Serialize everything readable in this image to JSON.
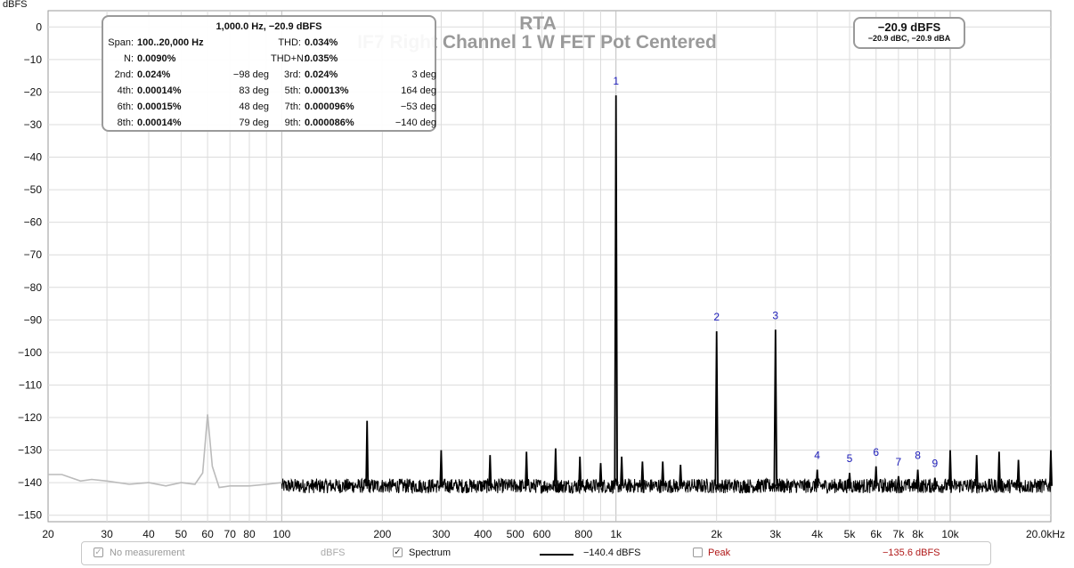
{
  "chart_data": {
    "type": "line",
    "title": "RTA",
    "subtitle": "IF7 Right Channel 1 W FET Pot Centered",
    "ylabel": "dBFS",
    "xscale": "log",
    "xlim": [
      20,
      20000
    ],
    "ylim": [
      -152,
      5
    ],
    "grid": true,
    "x_ticks": [
      {
        "v": 20,
        "label": "20"
      },
      {
        "v": 30,
        "label": "30"
      },
      {
        "v": 40,
        "label": "40"
      },
      {
        "v": 50,
        "label": "50"
      },
      {
        "v": 60,
        "label": "60"
      },
      {
        "v": 70,
        "label": "70"
      },
      {
        "v": 80,
        "label": "80"
      },
      {
        "v": 100,
        "label": "100"
      },
      {
        "v": 200,
        "label": "200"
      },
      {
        "v": 300,
        "label": "300"
      },
      {
        "v": 400,
        "label": "400"
      },
      {
        "v": 500,
        "label": "500"
      },
      {
        "v": 600,
        "label": "600"
      },
      {
        "v": 800,
        "label": "800"
      },
      {
        "v": 1000,
        "label": "1k"
      },
      {
        "v": 2000,
        "label": "2k"
      },
      {
        "v": 3000,
        "label": "3k"
      },
      {
        "v": 4000,
        "label": "4k"
      },
      {
        "v": 5000,
        "label": "5k"
      },
      {
        "v": 6000,
        "label": "6k"
      },
      {
        "v": 7000,
        "label": "7k"
      },
      {
        "v": 8000,
        "label": "8k"
      },
      {
        "v": 10000,
        "label": "10k"
      },
      {
        "v": 20000,
        "label": "20.0kHz"
      }
    ],
    "y_ticks": [
      0,
      -10,
      -20,
      -30,
      -40,
      -50,
      -60,
      -70,
      -80,
      -90,
      -100,
      -110,
      -120,
      -130,
      -140,
      -150
    ],
    "span_hz": [
      100,
      20000
    ],
    "noise_floor_dbfs": -141,
    "series": [
      {
        "name": "Spectrum",
        "color": "#000000",
        "range": [
          100,
          20000
        ],
        "peaks": [
          {
            "f": 180,
            "db": -121
          },
          {
            "f": 300,
            "db": -130
          },
          {
            "f": 420,
            "db": -131.5
          },
          {
            "f": 540,
            "db": -130.5
          },
          {
            "f": 660,
            "db": -129.5
          },
          {
            "f": 780,
            "db": -132
          },
          {
            "f": 900,
            "db": -134
          },
          {
            "f": 1000,
            "db": -21
          },
          {
            "f": 1040,
            "db": -132
          },
          {
            "f": 1200,
            "db": -133.5
          },
          {
            "f": 1380,
            "db": -133.5
          },
          {
            "f": 1560,
            "db": -134.5
          },
          {
            "f": 2000,
            "db": -93.5
          },
          {
            "f": 3000,
            "db": -93
          },
          {
            "f": 4000,
            "db": -136
          },
          {
            "f": 5000,
            "db": -137
          },
          {
            "f": 6000,
            "db": -135
          },
          {
            "f": 7000,
            "db": -138
          },
          {
            "f": 8000,
            "db": -136
          },
          {
            "f": 9000,
            "db": -138.5
          },
          {
            "f": 10000,
            "db": -130
          },
          {
            "f": 12000,
            "db": -131.5
          },
          {
            "f": 14000,
            "db": -130.5
          },
          {
            "f": 16000,
            "db": -133
          },
          {
            "f": 20000,
            "db": -130
          }
        ]
      },
      {
        "name": "No measurement",
        "color": "#bbbbbb",
        "range": [
          20,
          100
        ],
        "points": [
          [
            20,
            -137.5
          ],
          [
            22,
            -137.5
          ],
          [
            25,
            -139.5
          ],
          [
            27,
            -139
          ],
          [
            30,
            -139.5
          ],
          [
            35,
            -140.5
          ],
          [
            40,
            -140
          ],
          [
            45,
            -141
          ],
          [
            50,
            -140
          ],
          [
            55,
            -140.5
          ],
          [
            58,
            -137
          ],
          [
            60,
            -119
          ],
          [
            62,
            -135
          ],
          [
            65,
            -141.5
          ],
          [
            70,
            -141
          ],
          [
            80,
            -141
          ],
          [
            90,
            -140.5
          ],
          [
            100,
            -140
          ]
        ]
      }
    ],
    "harmonic_markers": [
      {
        "label": "1",
        "f": 1000,
        "db": -21
      },
      {
        "label": "2",
        "f": 2000,
        "db": -93.5
      },
      {
        "label": "3",
        "f": 3000,
        "db": -93
      },
      {
        "label": "4",
        "f": 4000,
        "db": -136
      },
      {
        "label": "5",
        "f": 5000,
        "db": -137
      },
      {
        "label": "6",
        "f": 6000,
        "db": -135
      },
      {
        "label": "7",
        "f": 7000,
        "db": -138
      },
      {
        "label": "8",
        "f": 8000,
        "db": -136
      },
      {
        "label": "9",
        "f": 9000,
        "db": -138.5
      }
    ]
  },
  "info_box": {
    "header": "1,000.0 Hz, −20.9 dBFS",
    "rows": [
      [
        {
          "label": "Span:",
          "value": "100..20,000 Hz"
        },
        {
          "label": "THD:",
          "value": "0.034%"
        }
      ],
      [
        {
          "label": "N:",
          "value": "0.0090%"
        },
        {
          "label": "THD+N:",
          "value": "0.035%"
        }
      ],
      [
        {
          "label": "2nd:",
          "value": "0.024%",
          "phase": "−98 deg"
        },
        {
          "label": "3rd:",
          "value": "0.024%",
          "phase": "3 deg"
        }
      ],
      [
        {
          "label": "4th:",
          "value": "0.00014%",
          "phase": "83 deg"
        },
        {
          "label": "5th:",
          "value": "0.00013%",
          "phase": "164 deg"
        }
      ],
      [
        {
          "label": "6th:",
          "value": "0.00015%",
          "phase": "48 deg"
        },
        {
          "label": "7th:",
          "value": "0.000096%",
          "phase": "−53 deg"
        }
      ],
      [
        {
          "label": "8th:",
          "value": "0.00014%",
          "phase": "79 deg"
        },
        {
          "label": "9th:",
          "value": "0.000086%",
          "phase": "−140 deg"
        }
      ]
    ]
  },
  "level_box": {
    "main": "−20.9 dBFS",
    "sub": "−20.9 dBC, −20.9 dBA"
  },
  "bottom_bar": {
    "no_measurement": {
      "label": "No measurement",
      "unit": "dBFS",
      "checked": true
    },
    "spectrum": {
      "label": "Spectrum",
      "checked": true,
      "value": "−140.4 dBFS"
    },
    "peak": {
      "label": "Peak",
      "checked": false,
      "value": "−135.6 dBFS",
      "color": "#b01818"
    }
  },
  "colors": {
    "marker": "#1a1ab8",
    "grid": "#dcdcdc",
    "axis": "#9a9a9a"
  }
}
